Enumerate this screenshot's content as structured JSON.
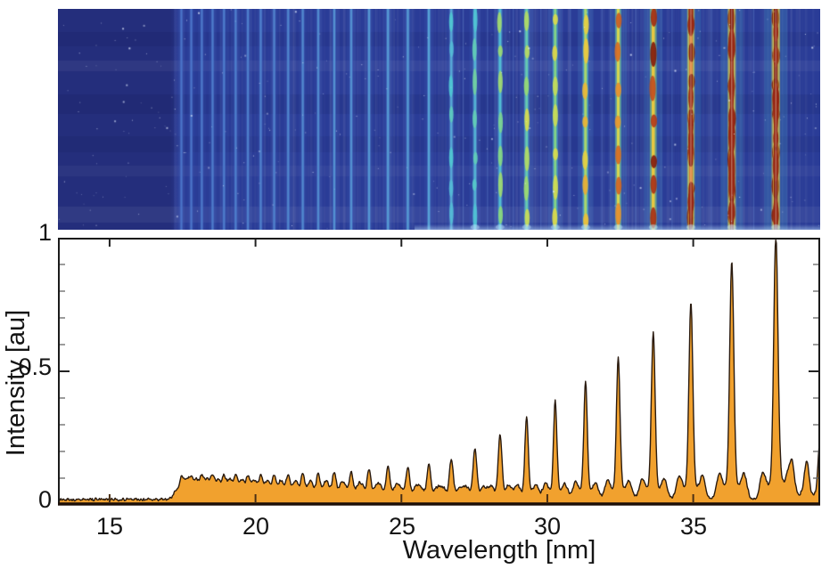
{
  "figure": {
    "kind": "high-harmonic XUV spectrum figure",
    "panels": [
      "raw CCD spectrogram (top)",
      "lineout spectrum (bottom)"
    ]
  },
  "chart_data": [
    {
      "type": "area",
      "title": "",
      "xlabel": "Wavelength [nm]",
      "ylabel": "Intensity [au]",
      "xlim": [
        13.23,
        39.35
      ],
      "ylim": [
        0,
        1
      ],
      "x_ticks": [
        15,
        20,
        25,
        30,
        35
      ],
      "x_tick_labels": [
        "15",
        "20",
        "25",
        "30",
        "35"
      ],
      "y_ticks": [
        1,
        0.5,
        0
      ],
      "y_tick_labels": [
        "1",
        "0.5",
        "0"
      ],
      "y_minor_tick_step": 0.1,
      "grid": false,
      "legend": "none",
      "baseline": 0.02,
      "fill_color": "#F1A12E",
      "line_color": "#2A1B10",
      "axis_color": "#1a1a1a",
      "peaks": [
        {
          "wl": 17.46,
          "h": 0.06
        },
        {
          "wl": 17.8,
          "h": 0.06
        },
        {
          "wl": 18.16,
          "h": 0.065
        },
        {
          "wl": 18.53,
          "h": 0.07
        },
        {
          "wl": 18.92,
          "h": 0.07
        },
        {
          "wl": 19.32,
          "h": 0.075
        },
        {
          "wl": 19.74,
          "h": 0.075
        },
        {
          "wl": 20.18,
          "h": 0.08
        },
        {
          "wl": 20.64,
          "h": 0.08
        },
        {
          "wl": 21.12,
          "h": 0.085
        },
        {
          "wl": 21.62,
          "h": 0.09
        },
        {
          "wl": 22.15,
          "h": 0.09
        },
        {
          "wl": 22.7,
          "h": 0.1
        },
        {
          "wl": 23.28,
          "h": 0.1
        },
        {
          "wl": 23.89,
          "h": 0.11
        },
        {
          "wl": 24.54,
          "h": 0.12
        },
        {
          "wl": 25.22,
          "h": 0.12
        },
        {
          "wl": 25.94,
          "h": 0.13
        },
        {
          "wl": 26.71,
          "h": 0.15
        },
        {
          "wl": 27.52,
          "h": 0.19
        },
        {
          "wl": 28.38,
          "h": 0.24
        },
        {
          "wl": 29.29,
          "h": 0.31
        },
        {
          "wl": 30.27,
          "h": 0.37
        },
        {
          "wl": 31.31,
          "h": 0.44
        },
        {
          "wl": 32.43,
          "h": 0.53
        },
        {
          "wl": 33.63,
          "h": 0.63
        },
        {
          "wl": 34.92,
          "h": 0.74
        },
        {
          "wl": 36.32,
          "h": 0.89
        },
        {
          "wl": 37.83,
          "h": 0.97
        },
        {
          "wl": 38.4,
          "h": 0.065
        },
        {
          "wl": 38.9,
          "h": 0.07
        },
        {
          "wl": 39.35,
          "h": 0.2
        }
      ]
    },
    {
      "type": "heatmap",
      "description": "Raw CCD spectrogram of the same harmonic comb: vertical emission lines on a deep blue background, intensity coded blue->cyan->green->yellow->red, with hot-pixel speckles and horizontal banding; darker unexposed region left of 17.2 nm",
      "x_range_nm": [
        13.23,
        39.35
      ],
      "dark_region_end_nm": 17.2,
      "bg_dark": "#242E7C",
      "bg_main": "#2A3C97",
      "colormap": [
        [
          "0.00",
          "#2A3C97"
        ],
        [
          "0.12",
          "#4A6FC8"
        ],
        [
          "0.25",
          "#5AAAD8"
        ],
        [
          "0.40",
          "#4FC8D4"
        ],
        [
          "0.52",
          "#8CD87A"
        ],
        [
          "0.64",
          "#D8DC4E"
        ],
        [
          "0.75",
          "#EFC93C"
        ],
        [
          "0.84",
          "#E07A28"
        ],
        [
          "0.92",
          "#B03418"
        ],
        [
          "1.00",
          "#7C150B"
        ]
      ],
      "uses_peaks_of": "chart_data[0]"
    }
  ]
}
